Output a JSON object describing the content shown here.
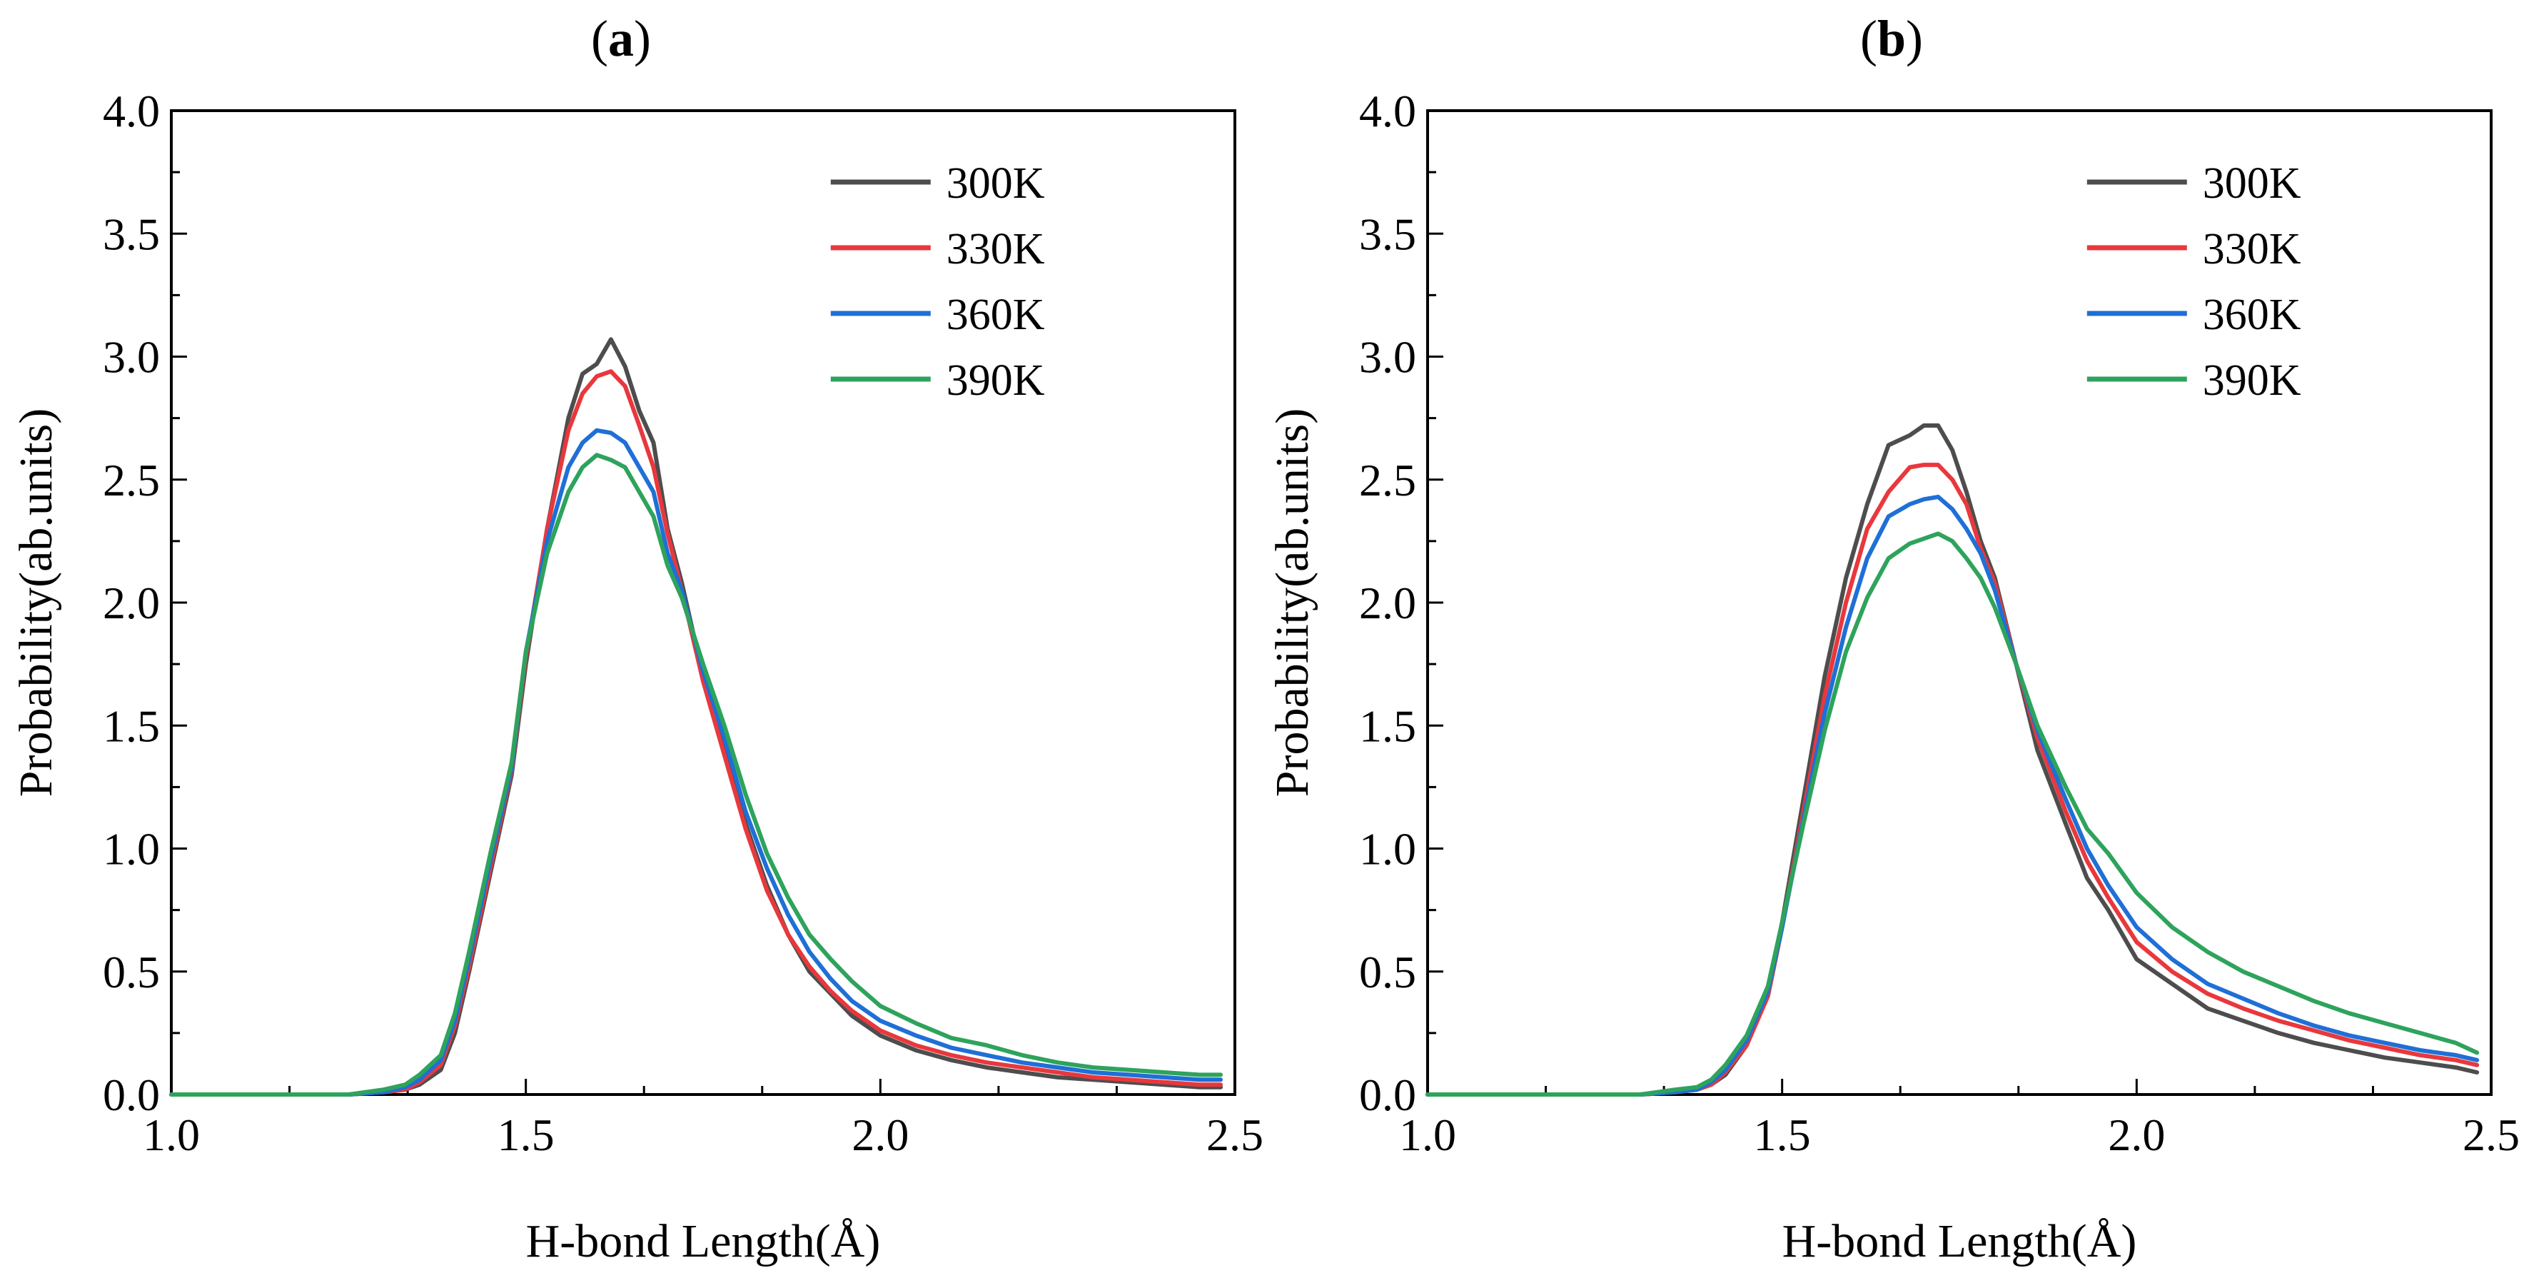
{
  "chart_data": [
    {
      "type": "line",
      "panel_label": "a",
      "xlabel": "H-bond Length(Å)",
      "ylabel": "Probability(ab.units)",
      "xlim": [
        1.0,
        2.5
      ],
      "ylim": [
        0.0,
        4.0
      ],
      "xticks": [
        "1.0",
        "1.5",
        "2.0",
        "2.5"
      ],
      "yticks": [
        "0.0",
        "0.5",
        "1.0",
        "1.5",
        "2.0",
        "2.5",
        "3.0",
        "3.5",
        "4.0"
      ],
      "grid": false,
      "legend": "top-right",
      "x": [
        1.0,
        1.25,
        1.3,
        1.33,
        1.35,
        1.38,
        1.4,
        1.42,
        1.45,
        1.48,
        1.5,
        1.53,
        1.56,
        1.58,
        1.6,
        1.62,
        1.64,
        1.66,
        1.68,
        1.7,
        1.72,
        1.75,
        1.78,
        1.81,
        1.84,
        1.87,
        1.9,
        1.93,
        1.96,
        2.0,
        2.05,
        2.1,
        2.15,
        2.2,
        2.25,
        2.3,
        2.35,
        2.4,
        2.45,
        2.48
      ],
      "series": [
        {
          "name": "300K",
          "color": "#4d4d4d",
          "values": [
            0.0,
            0.0,
            0.01,
            0.02,
            0.04,
            0.1,
            0.25,
            0.5,
            0.9,
            1.3,
            1.75,
            2.3,
            2.75,
            2.93,
            2.97,
            3.07,
            2.96,
            2.78,
            2.65,
            2.3,
            2.08,
            1.7,
            1.4,
            1.1,
            0.85,
            0.65,
            0.5,
            0.41,
            0.32,
            0.24,
            0.18,
            0.14,
            0.11,
            0.09,
            0.07,
            0.06,
            0.05,
            0.04,
            0.03,
            0.03
          ]
        },
        {
          "name": "330K",
          "color": "#e8383d",
          "values": [
            0.0,
            0.0,
            0.01,
            0.02,
            0.05,
            0.12,
            0.28,
            0.52,
            0.92,
            1.32,
            1.78,
            2.3,
            2.7,
            2.85,
            2.92,
            2.94,
            2.88,
            2.72,
            2.55,
            2.28,
            2.05,
            1.68,
            1.38,
            1.08,
            0.83,
            0.65,
            0.52,
            0.42,
            0.34,
            0.26,
            0.2,
            0.16,
            0.13,
            0.11,
            0.09,
            0.07,
            0.06,
            0.05,
            0.04,
            0.04
          ]
        },
        {
          "name": "360K",
          "color": "#1f6fd6",
          "values": [
            0.0,
            0.0,
            0.01,
            0.03,
            0.06,
            0.14,
            0.3,
            0.55,
            0.95,
            1.33,
            1.8,
            2.25,
            2.55,
            2.65,
            2.7,
            2.69,
            2.65,
            2.55,
            2.45,
            2.2,
            2.05,
            1.72,
            1.45,
            1.15,
            0.92,
            0.73,
            0.58,
            0.47,
            0.38,
            0.3,
            0.24,
            0.19,
            0.16,
            0.13,
            0.11,
            0.09,
            0.08,
            0.07,
            0.06,
            0.06
          ]
        },
        {
          "name": "390K",
          "color": "#2ea35c",
          "values": [
            0.0,
            0.0,
            0.02,
            0.04,
            0.08,
            0.16,
            0.33,
            0.58,
            0.98,
            1.35,
            1.8,
            2.2,
            2.45,
            2.55,
            2.6,
            2.58,
            2.55,
            2.45,
            2.35,
            2.15,
            2.02,
            1.75,
            1.5,
            1.22,
            0.98,
            0.8,
            0.65,
            0.55,
            0.46,
            0.36,
            0.29,
            0.23,
            0.2,
            0.16,
            0.13,
            0.11,
            0.1,
            0.09,
            0.08,
            0.08
          ]
        }
      ]
    },
    {
      "type": "line",
      "panel_label": "b",
      "xlabel": "H-bond Length(Å)",
      "ylabel": "Probability(ab.units)",
      "xlim": [
        1.0,
        2.5
      ],
      "ylim": [
        0.0,
        4.0
      ],
      "xticks": [
        "1.0",
        "1.5",
        "2.0",
        "2.5"
      ],
      "yticks": [
        "0.0",
        "0.5",
        "1.0",
        "1.5",
        "2.0",
        "2.5",
        "3.0",
        "3.5",
        "4.0"
      ],
      "grid": false,
      "legend": "top-right",
      "x": [
        1.0,
        1.3,
        1.35,
        1.38,
        1.4,
        1.42,
        1.45,
        1.48,
        1.5,
        1.53,
        1.56,
        1.59,
        1.62,
        1.65,
        1.68,
        1.7,
        1.72,
        1.74,
        1.76,
        1.78,
        1.8,
        1.83,
        1.86,
        1.9,
        1.93,
        1.96,
        2.0,
        2.05,
        2.1,
        2.15,
        2.2,
        2.25,
        2.3,
        2.35,
        2.4,
        2.45,
        2.48
      ],
      "series": [
        {
          "name": "300K",
          "color": "#4d4d4d",
          "values": [
            0.0,
            0.0,
            0.01,
            0.02,
            0.04,
            0.08,
            0.2,
            0.42,
            0.7,
            1.2,
            1.7,
            2.1,
            2.4,
            2.64,
            2.68,
            2.72,
            2.72,
            2.62,
            2.45,
            2.25,
            2.1,
            1.75,
            1.4,
            1.1,
            0.88,
            0.75,
            0.55,
            0.45,
            0.35,
            0.3,
            0.25,
            0.21,
            0.18,
            0.15,
            0.13,
            0.11,
            0.09
          ]
        },
        {
          "name": "330K",
          "color": "#e8383d",
          "values": [
            0.0,
            0.0,
            0.01,
            0.02,
            0.04,
            0.09,
            0.2,
            0.4,
            0.68,
            1.15,
            1.62,
            2.0,
            2.3,
            2.45,
            2.55,
            2.56,
            2.56,
            2.5,
            2.4,
            2.22,
            2.08,
            1.75,
            1.45,
            1.15,
            0.95,
            0.8,
            0.62,
            0.5,
            0.41,
            0.35,
            0.3,
            0.26,
            0.22,
            0.19,
            0.16,
            0.14,
            0.12
          ]
        },
        {
          "name": "360K",
          "color": "#1f6fd6",
          "values": [
            0.0,
            0.0,
            0.01,
            0.02,
            0.05,
            0.1,
            0.22,
            0.42,
            0.68,
            1.12,
            1.55,
            1.9,
            2.18,
            2.35,
            2.4,
            2.42,
            2.43,
            2.38,
            2.3,
            2.2,
            2.05,
            1.75,
            1.48,
            1.2,
            1.0,
            0.85,
            0.68,
            0.55,
            0.45,
            0.39,
            0.33,
            0.28,
            0.24,
            0.21,
            0.18,
            0.16,
            0.14
          ]
        },
        {
          "name": "390K",
          "color": "#2ea35c",
          "values": [
            0.0,
            0.0,
            0.02,
            0.03,
            0.06,
            0.12,
            0.24,
            0.44,
            0.7,
            1.1,
            1.48,
            1.8,
            2.02,
            2.18,
            2.24,
            2.26,
            2.28,
            2.25,
            2.18,
            2.1,
            1.98,
            1.75,
            1.5,
            1.25,
            1.08,
            0.98,
            0.82,
            0.68,
            0.58,
            0.5,
            0.44,
            0.38,
            0.33,
            0.29,
            0.25,
            0.21,
            0.17
          ]
        }
      ]
    }
  ]
}
